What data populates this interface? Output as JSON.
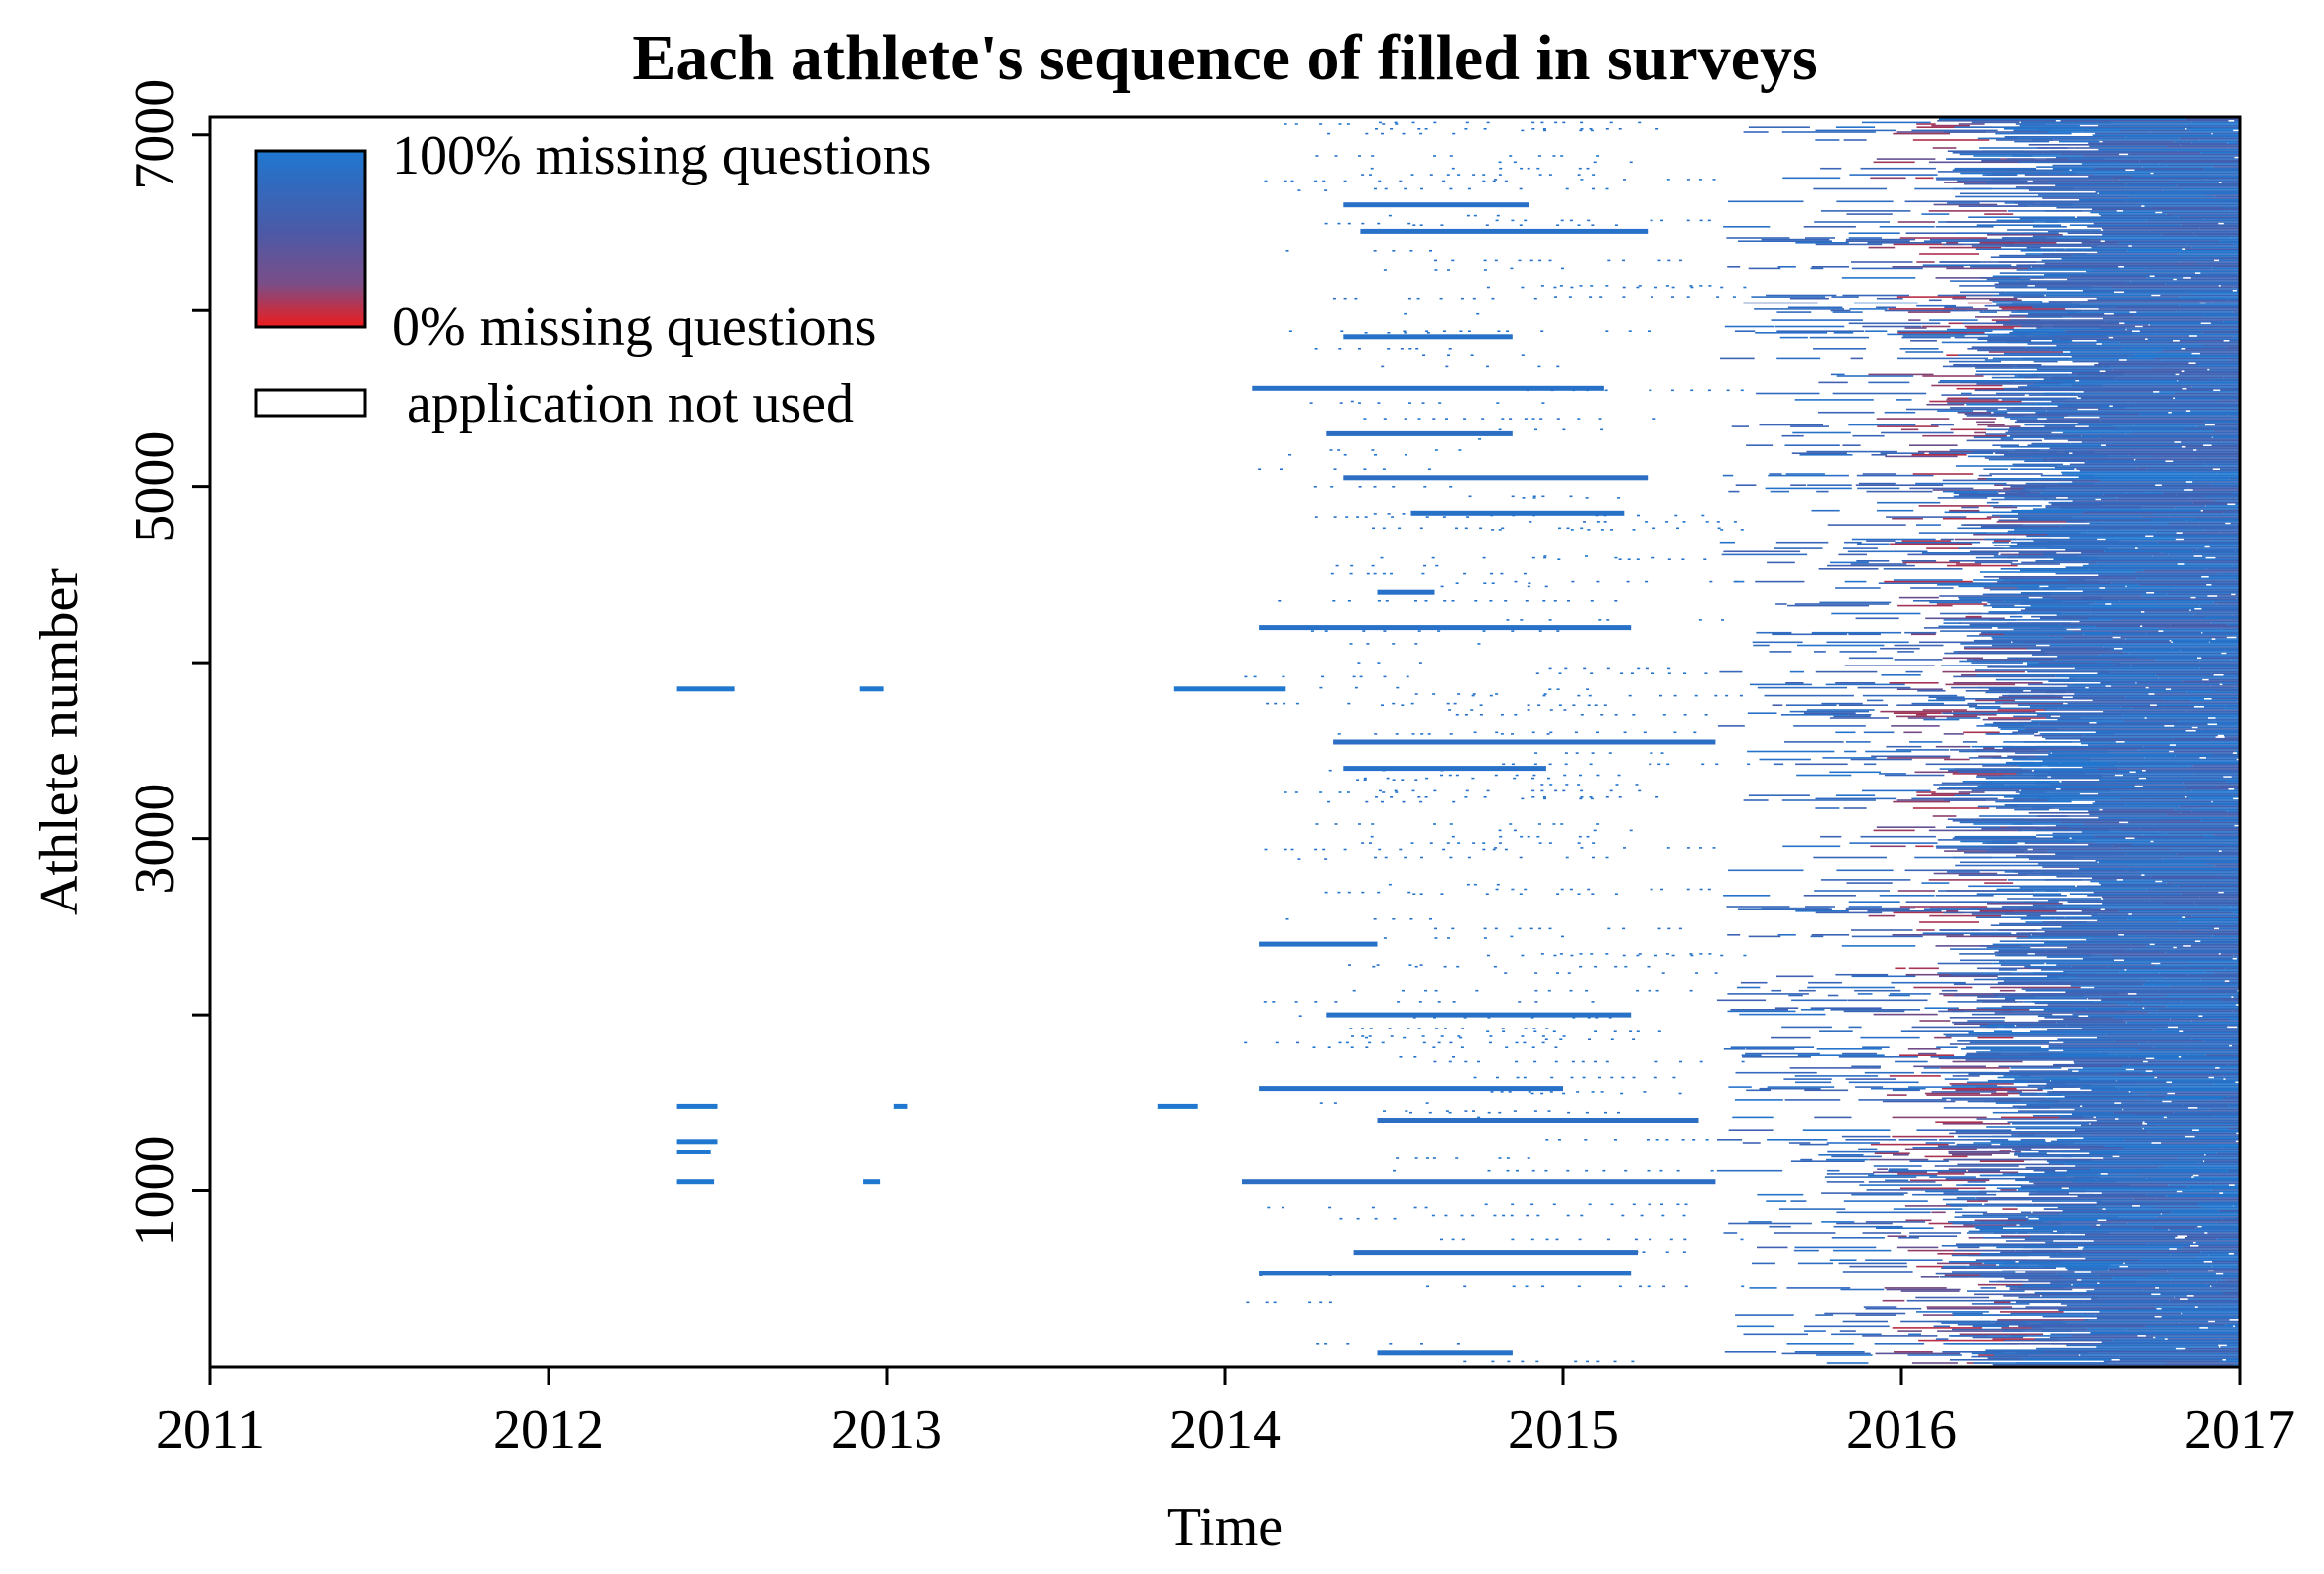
{
  "chart_data": {
    "type": "heatmap",
    "title": "Each athlete's sequence of filled in surveys",
    "xlabel": "Time",
    "ylabel": "Athlete number",
    "xlim": [
      2011,
      2017
    ],
    "ylim": [
      0,
      7100
    ],
    "x_ticks": [
      "2011",
      "2012",
      "2013",
      "2014",
      "2015",
      "2016",
      "2017"
    ],
    "y_ticks": [
      "1000",
      "3000",
      "5000",
      "7000"
    ],
    "y_minor_ticks": [
      2000,
      4000,
      6000
    ],
    "legend": {
      "placement": "top-left",
      "gradient_top_label": "100% missing questions",
      "gradient_bottom_label": "0% missing questions",
      "empty_label": "application not used"
    },
    "colors": {
      "full_missing": "#1f77d0",
      "mid": "#4a5aa8",
      "no_missing": "#e81818",
      "unused": "#ffffff"
    },
    "segments": [
      {
        "y": 3850,
        "x0": 2012.38,
        "x1": 2012.55,
        "c": 1
      },
      {
        "y": 3850,
        "x0": 2012.92,
        "x1": 2012.99,
        "c": 1
      },
      {
        "y": 1480,
        "x0": 2012.38,
        "x1": 2012.5,
        "c": 1
      },
      {
        "y": 1280,
        "x0": 2012.38,
        "x1": 2012.5,
        "c": 1
      },
      {
        "y": 1220,
        "x0": 2012.38,
        "x1": 2012.48,
        "c": 1
      },
      {
        "y": 1050,
        "x0": 2012.38,
        "x1": 2012.49,
        "c": 1
      },
      {
        "y": 1480,
        "x0": 2013.02,
        "x1": 2013.06,
        "c": 1
      },
      {
        "y": 1050,
        "x0": 2012.93,
        "x1": 2012.98,
        "c": 1
      },
      {
        "y": 3850,
        "x0": 2013.85,
        "x1": 2014.18,
        "c": 1
      },
      {
        "y": 1480,
        "x0": 2013.8,
        "x1": 2013.92,
        "c": 1
      },
      {
        "y": 1050,
        "x0": 2014.05,
        "x1": 2015.45,
        "c": 0.85
      },
      {
        "y": 6600,
        "x0": 2014.35,
        "x1": 2014.9,
        "c": 0.9
      },
      {
        "y": 6450,
        "x0": 2014.4,
        "x1": 2015.25,
        "c": 0.9
      },
      {
        "y": 5850,
        "x0": 2014.35,
        "x1": 2014.85,
        "c": 0.9
      },
      {
        "y": 5560,
        "x0": 2014.08,
        "x1": 2015.12,
        "c": 0.9
      },
      {
        "y": 5300,
        "x0": 2014.3,
        "x1": 2014.85,
        "c": 0.85
      },
      {
        "y": 5050,
        "x0": 2014.35,
        "x1": 2015.25,
        "c": 0.85
      },
      {
        "y": 4850,
        "x0": 2014.55,
        "x1": 2015.18,
        "c": 0.9
      },
      {
        "y": 4400,
        "x0": 2014.45,
        "x1": 2014.62,
        "c": 0.9
      },
      {
        "y": 4200,
        "x0": 2014.1,
        "x1": 2015.2,
        "c": 0.9
      },
      {
        "y": 3550,
        "x0": 2014.32,
        "x1": 2015.45,
        "c": 0.85
      },
      {
        "y": 3400,
        "x0": 2014.35,
        "x1": 2014.95,
        "c": 0.9
      },
      {
        "y": 2400,
        "x0": 2014.1,
        "x1": 2014.45,
        "c": 0.9
      },
      {
        "y": 2000,
        "x0": 2014.3,
        "x1": 2015.2,
        "c": 0.9
      },
      {
        "y": 1580,
        "x0": 2014.1,
        "x1": 2015.0,
        "c": 0.9
      },
      {
        "y": 1400,
        "x0": 2014.45,
        "x1": 2015.4,
        "c": 0.85
      },
      {
        "y": 650,
        "x0": 2014.38,
        "x1": 2015.22,
        "c": 0.85
      },
      {
        "y": 530,
        "x0": 2014.1,
        "x1": 2015.2,
        "c": 0.9
      },
      {
        "y": 80,
        "x0": 2014.45,
        "x1": 2014.85,
        "c": 0.9
      }
    ],
    "density_profile": {
      "description": "Sparse dotted rows from 2014, denser rows from mid-2015, nearly fully filled after mid-2016",
      "start_sparse": 2014.05,
      "start_dense": 2015.45,
      "start_full": 2016.45,
      "red_band_center": 2016.1
    }
  }
}
